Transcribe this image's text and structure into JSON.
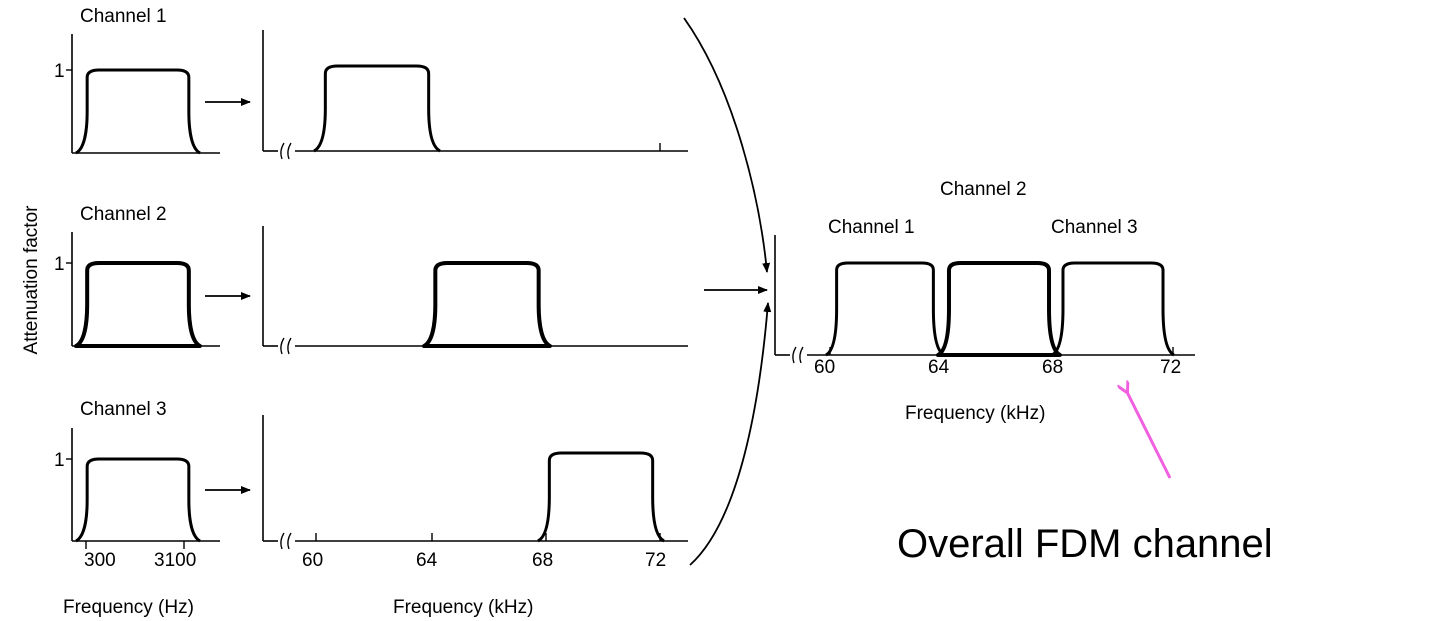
{
  "diagram": {
    "y_axis_label": "Attenuation factor",
    "unit_level": "1",
    "colors": {
      "fill": "#fcc4f4",
      "stroke": "#000000",
      "callout": "#f060e0"
    },
    "baseband": {
      "panels": [
        {
          "title": "Channel 1",
          "filled": false
        },
        {
          "title": "Channel 2",
          "filled": true
        },
        {
          "title": "Channel 3",
          "filled": false
        }
      ],
      "ticks": [
        "300",
        "3100"
      ],
      "xlabel": "Frequency (Hz)"
    },
    "shifted": {
      "panels": [
        {
          "channel": 1,
          "band_khz": [
            60,
            64
          ],
          "filled": false
        },
        {
          "channel": 2,
          "band_khz": [
            64,
            68
          ],
          "filled": true
        },
        {
          "channel": 3,
          "band_khz": [
            68,
            72
          ],
          "filled": false
        }
      ],
      "ticks": [
        "60",
        "64",
        "68",
        "72"
      ],
      "xlabel": "Frequency (kHz)"
    },
    "combined": {
      "labels": {
        "ch1": "Channel 1",
        "ch2": "Channel 2",
        "ch3": "Channel 3"
      },
      "bands_khz": [
        [
          60,
          64
        ],
        [
          64,
          68
        ],
        [
          68,
          72
        ]
      ],
      "ticks": [
        "60",
        "64",
        "68",
        "72"
      ],
      "xlabel": "Frequency (kHz)",
      "callout": "Overall FDM channel"
    }
  }
}
